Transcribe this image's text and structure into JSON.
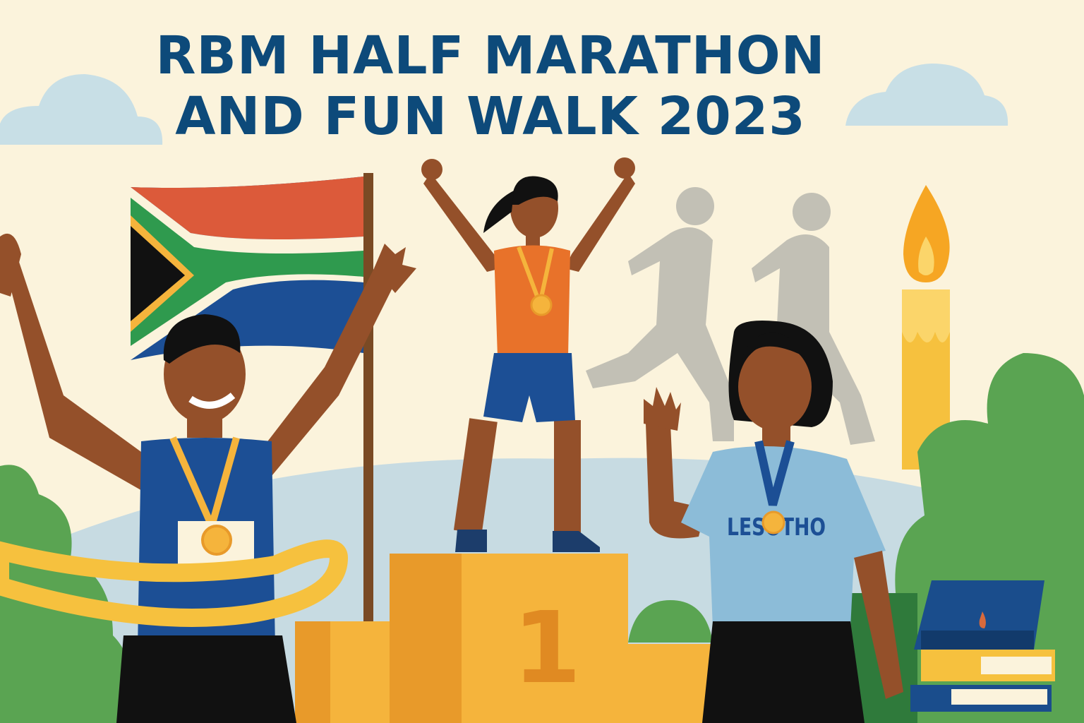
{
  "poster": {
    "title_line1": "RBM HALF MARATHON",
    "title_line2": "AND FUN WALK 2023",
    "shirt_text": "LESOTHO",
    "podium_number": "1"
  },
  "colors": {
    "background": "#fbf3dc",
    "title": "#0d4a7a",
    "skin": "#94502a",
    "podium": "#f5b43c",
    "foliage": "#5aa452",
    "hill": "#c7dbe2",
    "ribbon": "#f6c13e"
  }
}
